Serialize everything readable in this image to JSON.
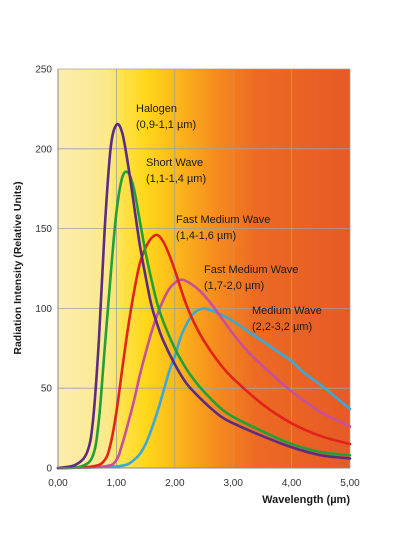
{
  "chart_data": {
    "type": "line",
    "xlabel": "Wavelength (µm)",
    "ylabel": "Radiation Intensity (Relative Units)",
    "xlim": [
      0,
      5
    ],
    "ylim": [
      0,
      250
    ],
    "x_ticks": [
      "0,00",
      "1,00",
      "2,00",
      "3,00",
      "4,00",
      "5,00"
    ],
    "y_ticks": [
      "0",
      "50",
      "100",
      "150",
      "200",
      "250"
    ],
    "grid": true,
    "background": "gradient from pale yellow (short wavelengths) through yellow and orange to red-orange (long wavelengths)",
    "series": [
      {
        "name": "Halogen",
        "range": "(0,9-1,1 µm)",
        "color": "#5b2c83",
        "points": [
          [
            0,
            0
          ],
          [
            0.3,
            2
          ],
          [
            0.5,
            10
          ],
          [
            0.6,
            30
          ],
          [
            0.7,
            80
          ],
          [
            0.8,
            150
          ],
          [
            0.9,
            200
          ],
          [
            1.0,
            215
          ],
          [
            1.1,
            210
          ],
          [
            1.2,
            190
          ],
          [
            1.3,
            165
          ],
          [
            1.4,
            140
          ],
          [
            1.5,
            120
          ],
          [
            1.6,
            102
          ],
          [
            1.7,
            90
          ],
          [
            1.8,
            80
          ],
          [
            2.0,
            65
          ],
          [
            2.2,
            53
          ],
          [
            2.4,
            45
          ],
          [
            2.6,
            38
          ],
          [
            2.8,
            32
          ],
          [
            3.0,
            28
          ],
          [
            3.5,
            20
          ],
          [
            4.0,
            13
          ],
          [
            4.5,
            8
          ],
          [
            5.0,
            6
          ]
        ]
      },
      {
        "name": "Short Wave",
        "range": "(1,1-1,4 µm)",
        "color": "#22a038",
        "points": [
          [
            0,
            0
          ],
          [
            0.4,
            1
          ],
          [
            0.6,
            8
          ],
          [
            0.7,
            30
          ],
          [
            0.8,
            75
          ],
          [
            0.9,
            120
          ],
          [
            1.0,
            160
          ],
          [
            1.1,
            182
          ],
          [
            1.2,
            185
          ],
          [
            1.3,
            175
          ],
          [
            1.4,
            155
          ],
          [
            1.5,
            135
          ],
          [
            1.6,
            118
          ],
          [
            1.7,
            103
          ],
          [
            1.8,
            92
          ],
          [
            2.0,
            75
          ],
          [
            2.2,
            62
          ],
          [
            2.4,
            52
          ],
          [
            2.6,
            44
          ],
          [
            2.8,
            37
          ],
          [
            3.0,
            32
          ],
          [
            3.5,
            23
          ],
          [
            4.0,
            15
          ],
          [
            4.5,
            10
          ],
          [
            5.0,
            8
          ]
        ]
      },
      {
        "name": "Fast Medium Wave",
        "range": "(1,4-1,6 µm)",
        "color": "#e2231a",
        "points": [
          [
            0,
            0
          ],
          [
            0.6,
            1
          ],
          [
            0.8,
            5
          ],
          [
            0.9,
            15
          ],
          [
            1.0,
            35
          ],
          [
            1.1,
            62
          ],
          [
            1.2,
            88
          ],
          [
            1.3,
            110
          ],
          [
            1.4,
            128
          ],
          [
            1.5,
            138
          ],
          [
            1.6,
            144
          ],
          [
            1.7,
            146
          ],
          [
            1.8,
            142
          ],
          [
            1.9,
            134
          ],
          [
            2.0,
            124
          ],
          [
            2.2,
            102
          ],
          [
            2.4,
            86
          ],
          [
            2.6,
            74
          ],
          [
            2.8,
            64
          ],
          [
            3.0,
            56
          ],
          [
            3.5,
            40
          ],
          [
            4.0,
            28
          ],
          [
            4.5,
            20
          ],
          [
            5.0,
            15
          ]
        ]
      },
      {
        "name": "Fast Medium Wave",
        "range": "(1,7-2,0 µm)",
        "color": "#c6509a",
        "points": [
          [
            0,
            0
          ],
          [
            0.8,
            1
          ],
          [
            1.0,
            5
          ],
          [
            1.1,
            15
          ],
          [
            1.2,
            28
          ],
          [
            1.3,
            42
          ],
          [
            1.4,
            58
          ],
          [
            1.5,
            72
          ],
          [
            1.6,
            85
          ],
          [
            1.7,
            96
          ],
          [
            1.8,
            105
          ],
          [
            1.9,
            112
          ],
          [
            2.0,
            116
          ],
          [
            2.1,
            118
          ],
          [
            2.2,
            117
          ],
          [
            2.4,
            112
          ],
          [
            2.6,
            104
          ],
          [
            2.8,
            94
          ],
          [
            3.0,
            84
          ],
          [
            3.2,
            75
          ],
          [
            3.5,
            64
          ],
          [
            4.0,
            48
          ],
          [
            4.5,
            35
          ],
          [
            5.0,
            26
          ]
        ]
      },
      {
        "name": "Medium Wave",
        "range": "(2,2-3,2 µm)",
        "color": "#3aa8d8",
        "points": [
          [
            0,
            0
          ],
          [
            1.0,
            1
          ],
          [
            1.3,
            5
          ],
          [
            1.5,
            15
          ],
          [
            1.7,
            35
          ],
          [
            1.9,
            60
          ],
          [
            2.0,
            70
          ],
          [
            2.1,
            82
          ],
          [
            2.2,
            90
          ],
          [
            2.3,
            96
          ],
          [
            2.4,
            99
          ],
          [
            2.5,
            100
          ],
          [
            2.6,
            99
          ],
          [
            2.8,
            96
          ],
          [
            3.0,
            92
          ],
          [
            3.2,
            87
          ],
          [
            3.4,
            82
          ],
          [
            3.6,
            77
          ],
          [
            3.8,
            72
          ],
          [
            4.0,
            67
          ],
          [
            4.2,
            60
          ],
          [
            4.5,
            52
          ],
          [
            4.8,
            43
          ],
          [
            5.0,
            37
          ]
        ]
      }
    ]
  }
}
